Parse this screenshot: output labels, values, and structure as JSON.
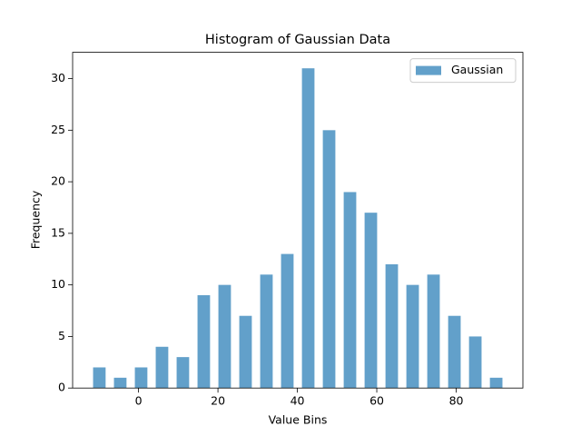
{
  "chart_data": {
    "type": "histogram",
    "title": "Histogram of Gaussian Data",
    "xlabel": "Value Bins",
    "ylabel": "Frequency",
    "bins": [
      -12.5,
      -7.24,
      -1.98,
      3.28,
      8.54,
      13.8,
      19.06,
      24.32,
      29.58,
      34.84,
      40.1,
      45.36,
      50.62,
      55.88,
      61.14,
      66.4,
      71.66,
      76.92,
      82.18,
      87.44,
      92.7
    ],
    "series": [
      {
        "name": "Gaussian",
        "color": "#1f77b4",
        "alpha": 0.7,
        "values": [
          2,
          1,
          2,
          4,
          3,
          9,
          10,
          7,
          11,
          13,
          31,
          25,
          19,
          17,
          12,
          10,
          11,
          7,
          5,
          1
        ]
      }
    ],
    "xlim": [
      -16.6,
      96.8
    ],
    "xticks": [
      0,
      20,
      40,
      60,
      80
    ],
    "ylim": [
      0,
      32.55
    ],
    "yticks": [
      0,
      5,
      10,
      15,
      20,
      25,
      30
    ],
    "grid": false,
    "legend": "upper right"
  }
}
